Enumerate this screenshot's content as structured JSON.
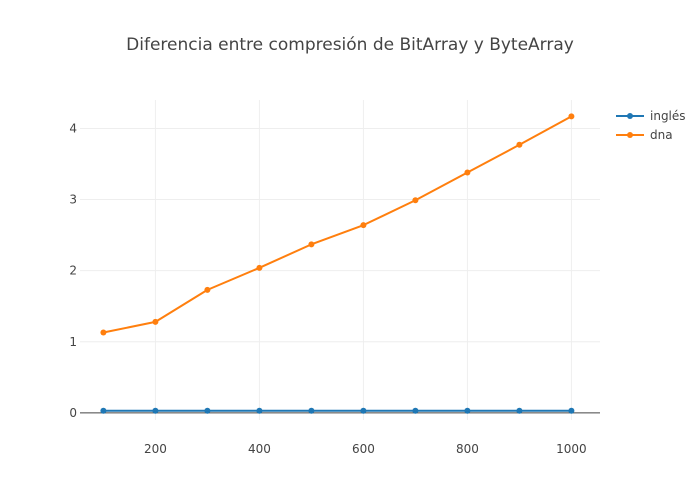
{
  "chart_data": {
    "type": "line",
    "title": "Diferencia entre compresión de BitArray y ByteArray",
    "xlabel": "",
    "ylabel": "",
    "x": [
      100,
      200,
      300,
      400,
      500,
      600,
      700,
      800,
      900,
      1000
    ],
    "xlim": [
      55,
      1055
    ],
    "ylim": [
      -0.1,
      4.4
    ],
    "x_ticks": [
      200,
      400,
      600,
      800,
      1000
    ],
    "y_ticks": [
      0,
      1,
      2,
      3,
      4
    ],
    "x_tick_labels": [
      "200",
      "400",
      "600",
      "800",
      "1000"
    ],
    "y_tick_labels": [
      "0",
      "1",
      "2",
      "3",
      "4"
    ],
    "grid": true,
    "legend_position": "top-right",
    "series": [
      {
        "name": "inglés",
        "color": "#1f77b4",
        "values": [
          0.03,
          0.03,
          0.03,
          0.03,
          0.03,
          0.03,
          0.03,
          0.03,
          0.03,
          0.03
        ]
      },
      {
        "name": "dna",
        "color": "#ff7f0e",
        "values": [
          1.13,
          1.28,
          1.73,
          2.04,
          2.37,
          2.64,
          2.99,
          3.38,
          3.77,
          4.17
        ]
      }
    ]
  }
}
